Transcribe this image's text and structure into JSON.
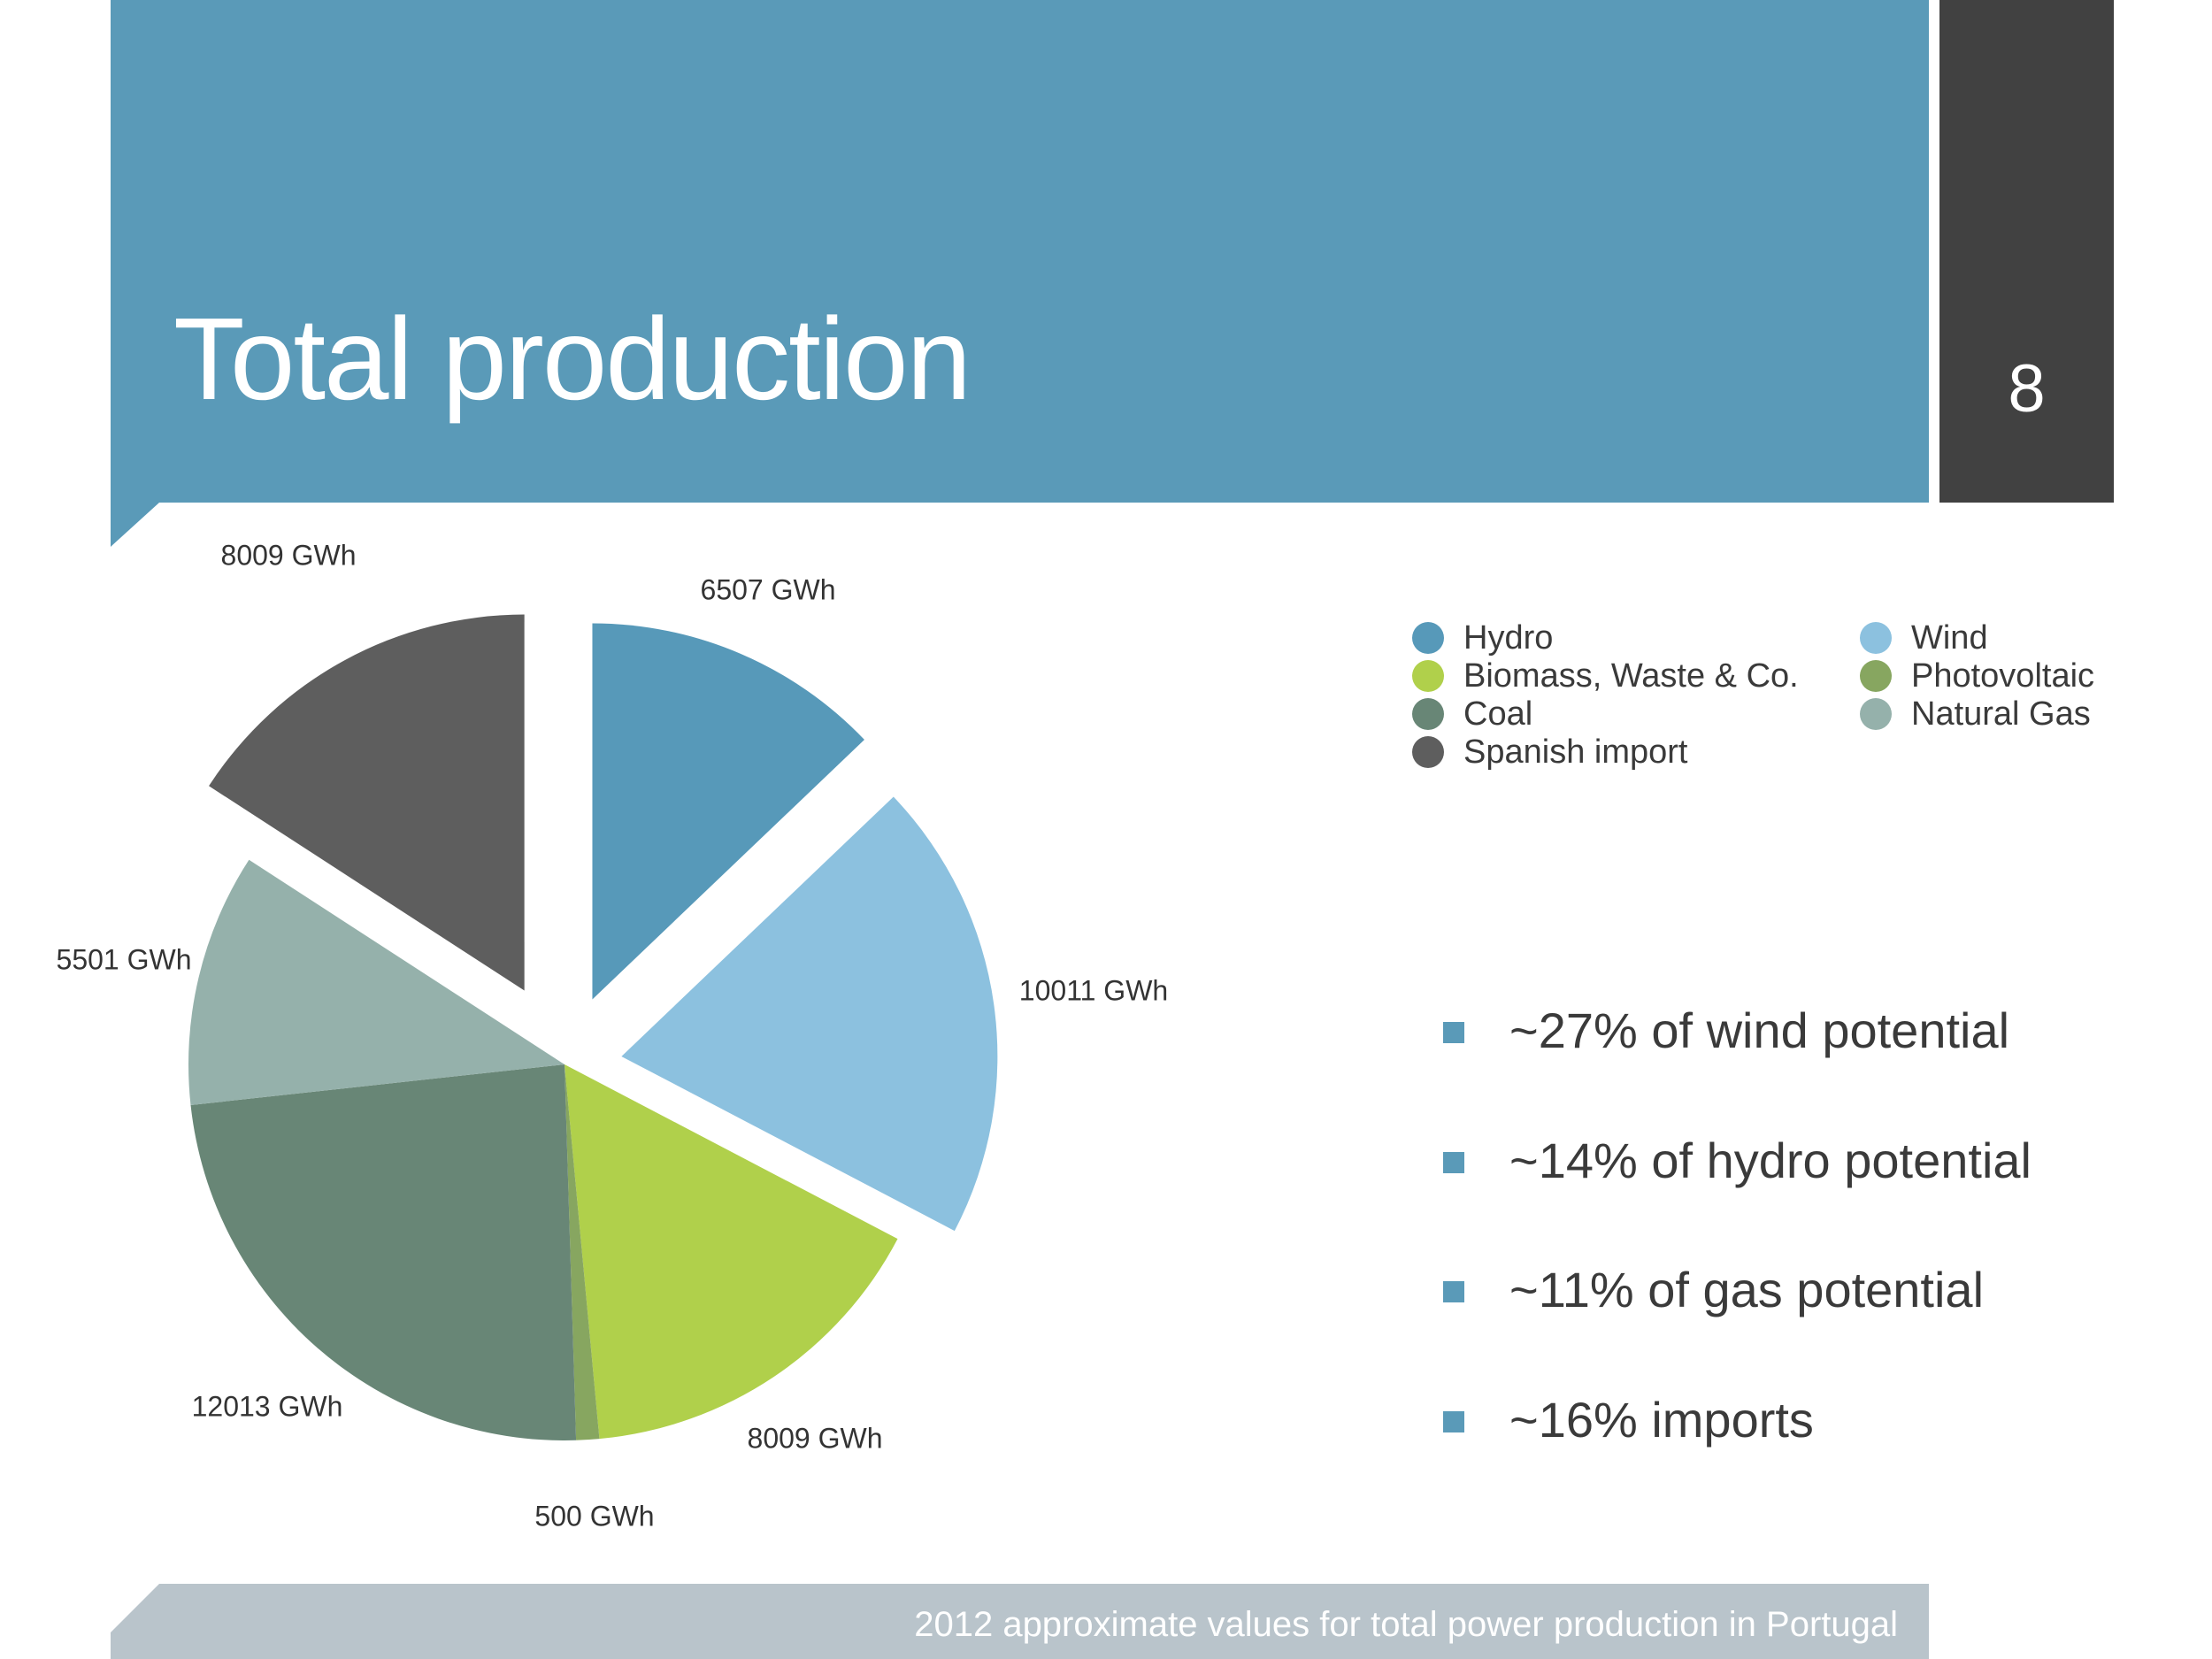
{
  "slide": {
    "title": "Total production",
    "page_number": "8",
    "footer": "2012 approximate values for total power production in Portugal"
  },
  "colors": {
    "header": "#5a9ab8",
    "page_box": "#414141",
    "footer": "#b9c4cb",
    "bullet": "#5a9ab8"
  },
  "legend": [
    {
      "label": "Hydro",
      "color": "#5799b9"
    },
    {
      "label": "Biomass, Waste & Co.",
      "color": "#b0d04b"
    },
    {
      "label": "Coal",
      "color": "#688676"
    },
    {
      "label": "Spanish import",
      "color": "#5e5e5e"
    },
    {
      "label": "Wind",
      "color": "#8cc1df"
    },
    {
      "label": "Photovoltaic",
      "color": "#87a660"
    },
    {
      "label": "Natural Gas",
      "color": "#95b1ab"
    }
  ],
  "bullets": [
    "~27% of wind potential",
    "~14% of hydro potential",
    "~11% of gas potential",
    "~16% imports"
  ],
  "chart_data": {
    "type": "pie",
    "unit": "GWh",
    "slices": [
      {
        "name": "Hydro",
        "value": 6507,
        "label": "6507 GWh",
        "color": "#5799b9",
        "exploded": true
      },
      {
        "name": "Wind",
        "value": 10011,
        "label": "10011 GWh",
        "color": "#8cc1df",
        "exploded": true
      },
      {
        "name": "Biomass, Waste & Co.",
        "value": 8009,
        "label": "8009 GWh",
        "color": "#b0d04b",
        "exploded": false
      },
      {
        "name": "Photovoltaic",
        "value": 500,
        "label": "500 GWh",
        "color": "#87a660",
        "exploded": false
      },
      {
        "name": "Coal",
        "value": 12013,
        "label": "12013 GWh",
        "color": "#688676",
        "exploded": false
      },
      {
        "name": "Natural Gas",
        "value": 5501,
        "label": "5501 GWh",
        "color": "#95b1ab",
        "exploded": false
      },
      {
        "name": "Spanish import",
        "value": 8009,
        "label": "8009 GWh",
        "color": "#5e5e5e",
        "exploded": true
      }
    ],
    "start": "12 o'clock",
    "direction": "clockwise",
    "legend_position": "right"
  }
}
